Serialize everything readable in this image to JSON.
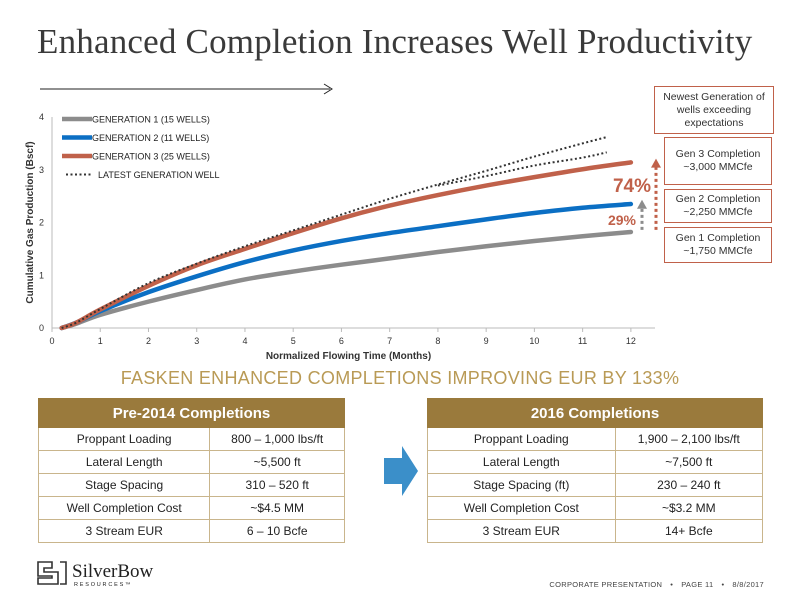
{
  "title": "Enhanced Completion Increases Well Productivity",
  "subtitle": "FASKEN ENHANCED COMPLETIONS IMPROVING EUR BY 133%",
  "annotations": {
    "newest": "Newest Generation of wells exceeding expectations",
    "gen3": "Gen 3 Completion ~3,000 MMCfe",
    "gen2": "Gen 2 Completion ~2,250 MMCfe",
    "gen1": "Gen 1 Completion ~1,750 MMCfe",
    "pct74": "74%",
    "pct29": "29%"
  },
  "colors": {
    "gen1": "#8c8c8c",
    "gen2": "#0b6fc4",
    "gen3": "#c0614a",
    "latest": "#333333",
    "gold": "#9a7a3c"
  },
  "chart_data": {
    "type": "line",
    "xlabel": "Normalized Flowing Time (Months)",
    "ylabel": "Cumulative Gas Production (Bscf)",
    "xlim": [
      0,
      12.5
    ],
    "ylim": [
      0,
      4
    ],
    "xticks": [
      "0",
      "1",
      "2",
      "3",
      "4",
      "5",
      "6",
      "7",
      "8",
      "9",
      "10",
      "11",
      "12"
    ],
    "yticks": [
      "0",
      "1",
      "2",
      "3",
      "4"
    ],
    "legend_position": "top-left",
    "series": [
      {
        "name": "GENERATION 1 (15 WELLS)",
        "style": "solid",
        "color": "#8c8c8c",
        "x": [
          0.2,
          0.5,
          1,
          2,
          3,
          4,
          5,
          6,
          7,
          8,
          9,
          10,
          11,
          12
        ],
        "y": [
          0,
          0.08,
          0.25,
          0.5,
          0.72,
          0.92,
          1.07,
          1.2,
          1.32,
          1.44,
          1.55,
          1.65,
          1.74,
          1.82
        ]
      },
      {
        "name": "GENERATION 2 (11 WELLS)",
        "style": "solid",
        "color": "#0b6fc4",
        "x": [
          0.2,
          0.5,
          1,
          2,
          3,
          4,
          5,
          6,
          7,
          8,
          9,
          10,
          11,
          12
        ],
        "y": [
          0,
          0.1,
          0.32,
          0.68,
          0.98,
          1.25,
          1.47,
          1.65,
          1.8,
          1.93,
          2.06,
          2.18,
          2.28,
          2.35
        ]
      },
      {
        "name": "GENERATION 3 (25 WELLS)",
        "style": "solid",
        "color": "#c0614a",
        "x": [
          0.2,
          0.5,
          1,
          2,
          3,
          4,
          5,
          6,
          7,
          8,
          9,
          10,
          11,
          12
        ],
        "y": [
          0,
          0.1,
          0.35,
          0.8,
          1.19,
          1.5,
          1.8,
          2.08,
          2.32,
          2.52,
          2.7,
          2.86,
          3.01,
          3.14
        ]
      },
      {
        "name": "LATEST GENERATION WELL",
        "style": "dotted",
        "color": "#333333",
        "x": [
          0.2,
          0.5,
          1,
          2,
          3,
          4,
          5,
          6,
          7,
          8,
          9,
          10,
          11,
          11.5
        ],
        "y": [
          0,
          0.1,
          0.36,
          0.85,
          1.22,
          1.55,
          1.85,
          2.15,
          2.45,
          2.72,
          2.98,
          3.25,
          3.5,
          3.62
        ]
      },
      {
        "name": "",
        "style": "dotted",
        "color": "#333333",
        "x": [
          8,
          9,
          10,
          11,
          11.5
        ],
        "y": [
          2.7,
          2.88,
          3.08,
          3.23,
          3.33
        ]
      }
    ]
  },
  "tables": {
    "pre": {
      "header": "Pre-2014 Completions",
      "rows": [
        [
          "Proppant Loading",
          "800 – 1,000 lbs/ft"
        ],
        [
          "Lateral Length",
          "~5,500 ft"
        ],
        [
          "Stage Spacing",
          "310 – 520 ft"
        ],
        [
          "Well Completion Cost",
          "~$4.5 MM"
        ],
        [
          "3 Stream EUR",
          "6 – 10 Bcfe"
        ]
      ]
    },
    "post": {
      "header": "2016 Completions",
      "rows": [
        [
          "Proppant Loading",
          "1,900 – 2,100 lbs/ft"
        ],
        [
          "Lateral Length",
          "~7,500 ft"
        ],
        [
          "Stage Spacing (ft)",
          "230 – 240 ft"
        ],
        [
          "Well Completion Cost",
          "~$3.2 MM"
        ],
        [
          "3 Stream EUR",
          "14+ Bcfe"
        ]
      ]
    }
  },
  "logo": {
    "name": "SilverBow",
    "sub": "RESOURCES™"
  },
  "footer": {
    "label": "CORPORATE PRESENTATION",
    "page": "PAGE 11",
    "date": "8/8/2017"
  }
}
